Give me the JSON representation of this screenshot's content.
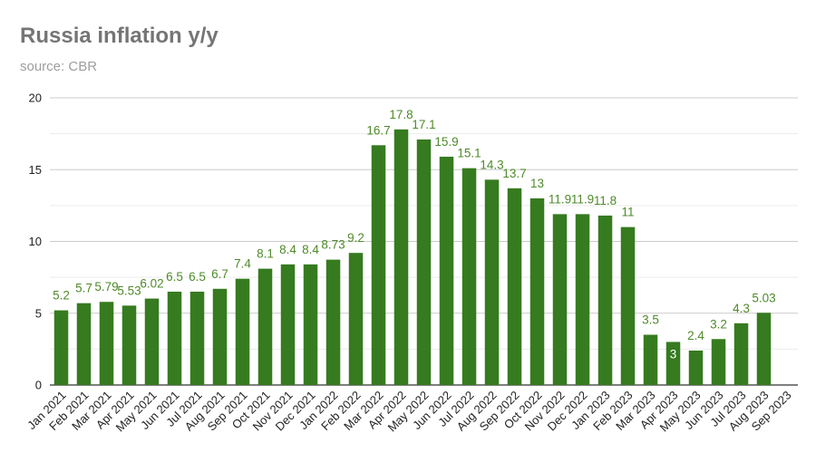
{
  "chart_data": {
    "type": "bar",
    "title": "Russia inflation y/y",
    "subtitle": "source: CBR",
    "xlabel": "",
    "ylabel": "",
    "ylim": [
      0,
      20
    ],
    "yticks": [
      0,
      5,
      10,
      15,
      20
    ],
    "grid": true,
    "bar_color": "#367b1f",
    "label_color": "#4e8a2a",
    "categories": [
      "Jan 2021",
      "Feb 2021",
      "Mar 2021",
      "Apr 2021",
      "May 2021",
      "Jun 2021",
      "Jul 2021",
      "Aug 2021",
      "Sep 2021",
      "Oct 2021",
      "Nov 2021",
      "Dec 2021",
      "Jan 2022",
      "Feb 2022",
      "Mar 2022",
      "Apr 2022",
      "May 2022",
      "Jun 2022",
      "Jul 2022",
      "Aug 2022",
      "Sep 2022",
      "Oct 2022",
      "Nov 2022",
      "Dec 2022",
      "Jan 2023",
      "Feb 2023",
      "Mar 2023",
      "Apr 2023",
      "May 2023",
      "Jun 2023",
      "Jul 2023",
      "Aug 2023",
      "Sep 2023"
    ],
    "values": [
      5.2,
      5.7,
      5.79,
      5.53,
      6.02,
      6.5,
      6.5,
      6.7,
      7.4,
      8.1,
      8.4,
      8.4,
      8.73,
      9.2,
      16.7,
      17.8,
      17.1,
      15.9,
      15.1,
      14.3,
      13.7,
      13,
      11.9,
      11.9,
      11.8,
      11,
      3.5,
      3,
      2.4,
      3.2,
      4.3,
      5.03,
      null
    ],
    "data_labels": [
      "5.2",
      "5.7",
      "5.79",
      "5.53",
      "6.02",
      "6.5",
      "6.5",
      "6.7",
      "7.4",
      "8.1",
      "8.4",
      "8.4",
      "8.73",
      "9.2",
      "16.7",
      "17.8",
      "17.1",
      "15.9",
      "15.1",
      "14.3",
      "13.7",
      "13",
      "11.9",
      "11.9",
      "11.8",
      "11",
      "3.5",
      "3",
      "2.4",
      "3.2",
      "4.3",
      "5.03",
      ""
    ]
  }
}
